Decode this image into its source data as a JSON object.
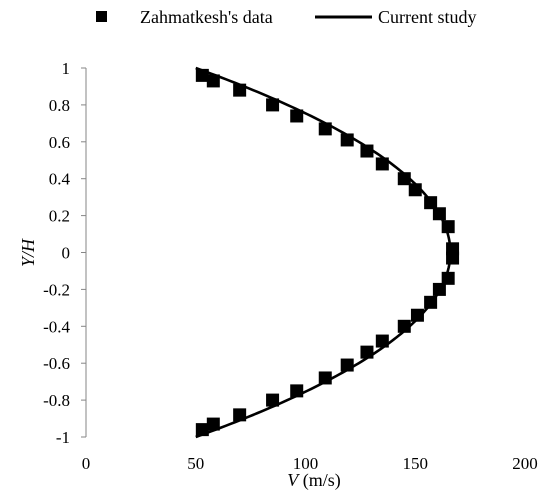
{
  "chart_data": {
    "type": "scatter",
    "xlabel_italic": "V",
    "xlabel_unit": " (m/s)",
    "ylabel": "Y/H",
    "xlim": [
      0,
      200
    ],
    "ylim": [
      -1,
      1
    ],
    "xticks": [
      0,
      50,
      100,
      150,
      200
    ],
    "yticks": [
      -1,
      -0.8,
      -0.6,
      -0.4,
      -0.2,
      0,
      0.2,
      0.4,
      0.6,
      0.8,
      1
    ],
    "ytick_labels": [
      "-1",
      "-0.8",
      "-0.6",
      "-0.4",
      "-0.2",
      "0",
      "0.2",
      "0.4",
      "0.6",
      "0.8",
      "1"
    ],
    "grid": false,
    "legend_position": "top",
    "series": [
      {
        "name": "Zahmatkesh's data",
        "kind": "markers",
        "marker": "square",
        "color": "#000000",
        "points": [
          [
            53,
            0.96
          ],
          [
            58,
            0.93
          ],
          [
            70,
            0.88
          ],
          [
            85,
            0.8
          ],
          [
            96,
            0.74
          ],
          [
            109,
            0.67
          ],
          [
            119,
            0.61
          ],
          [
            128,
            0.55
          ],
          [
            135,
            0.48
          ],
          [
            145,
            0.4
          ],
          [
            150,
            0.34
          ],
          [
            157,
            0.27
          ],
          [
            161,
            0.21
          ],
          [
            165,
            0.14
          ],
          [
            167,
            0.02
          ],
          [
            167,
            -0.03
          ],
          [
            165,
            -0.14
          ],
          [
            161,
            -0.2
          ],
          [
            157,
            -0.27
          ],
          [
            151,
            -0.34
          ],
          [
            145,
            -0.4
          ],
          [
            135,
            -0.48
          ],
          [
            128,
            -0.54
          ],
          [
            119,
            -0.61
          ],
          [
            109,
            -0.68
          ],
          [
            96,
            -0.75
          ],
          [
            85,
            -0.8
          ],
          [
            70,
            -0.88
          ],
          [
            58,
            -0.93
          ],
          [
            53,
            -0.96
          ]
        ]
      },
      {
        "name": "Current study",
        "kind": "line",
        "color": "#000000",
        "peak_velocity": 166,
        "wall_velocity": 50,
        "profile": "parabolic"
      }
    ]
  }
}
